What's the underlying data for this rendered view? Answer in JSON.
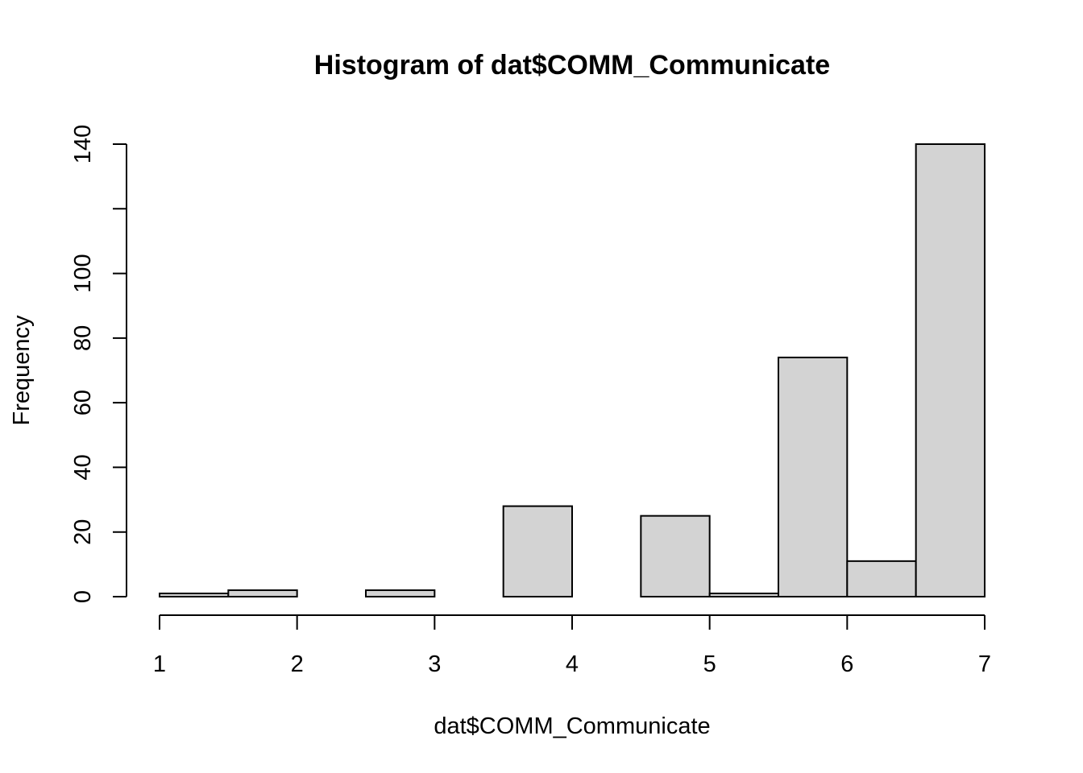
{
  "chart_data": {
    "type": "bar",
    "title": "Histogram of dat$COMM_Communicate",
    "xlabel": "dat$COMM_Communicate",
    "ylabel": "Frequency",
    "xlim": [
      1,
      7
    ],
    "ylim": [
      0,
      140
    ],
    "x_ticks": [
      1,
      2,
      3,
      4,
      5,
      6,
      7
    ],
    "y_ticks": [
      0,
      20,
      40,
      60,
      80,
      100,
      120,
      140
    ],
    "y_tick_labels": [
      "0",
      "20",
      "40",
      "60",
      "80",
      "100",
      "",
      "140"
    ],
    "bins": [
      {
        "start": 1.0,
        "end": 1.5,
        "value": 1
      },
      {
        "start": 1.5,
        "end": 2.0,
        "value": 2
      },
      {
        "start": 2.0,
        "end": 2.5,
        "value": 0
      },
      {
        "start": 2.5,
        "end": 3.0,
        "value": 2
      },
      {
        "start": 3.0,
        "end": 3.5,
        "value": 0
      },
      {
        "start": 3.5,
        "end": 4.0,
        "value": 28
      },
      {
        "start": 4.0,
        "end": 4.5,
        "value": 0
      },
      {
        "start": 4.5,
        "end": 5.0,
        "value": 25
      },
      {
        "start": 5.0,
        "end": 5.5,
        "value": 1
      },
      {
        "start": 5.5,
        "end": 6.0,
        "value": 74
      },
      {
        "start": 6.0,
        "end": 6.5,
        "value": 11
      },
      {
        "start": 6.5,
        "end": 7.0,
        "value": 140
      }
    ],
    "bar_fill": "#d3d3d3",
    "bar_stroke": "#000000",
    "grid": false,
    "legend": "none"
  }
}
